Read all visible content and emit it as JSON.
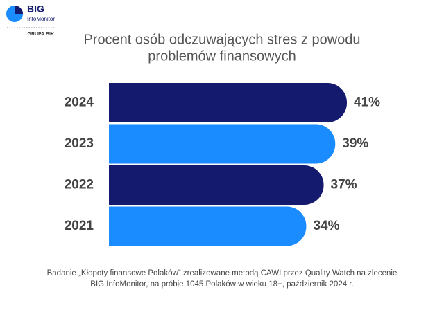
{
  "logo": {
    "name": "BIG",
    "subname": "InfoMonitor",
    "group": "GRUPA BIK"
  },
  "chart_data": {
    "type": "hbar",
    "title": [
      "Procent osób odczuwających stres z powodu",
      "problemów finansowych"
    ],
    "categories": [
      "2024",
      "2023",
      "2022",
      "2021"
    ],
    "values": [
      41,
      39,
      37,
      34
    ],
    "value_labels": [
      "41%",
      "39%",
      "37%",
      "34%"
    ],
    "colors": [
      "#141a6e",
      "#1a8cff",
      "#141a6e",
      "#1a8cff"
    ],
    "note": [
      "Badanie „Kłopoty finansowe Polaków” zrealizowane metodą CAWI przez Quality Watch na zlecenie",
      "BIG InfoMonitor, na próbie 1045 Polaków w wieku 18+, październik 2024 r."
    ]
  }
}
